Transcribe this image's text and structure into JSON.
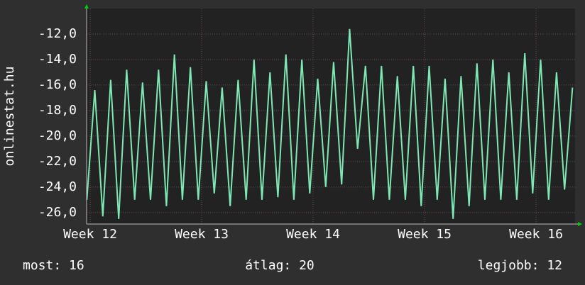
{
  "chart_data": {
    "type": "line",
    "y_label": "onlinestat.hu",
    "x": [
      11.97,
      12.041,
      12.113,
      12.184,
      12.256,
      12.327,
      12.399,
      12.47,
      12.541,
      12.613,
      12.684,
      12.756,
      12.827,
      12.899,
      12.97,
      13.041,
      13.113,
      13.184,
      13.256,
      13.327,
      13.399,
      13.47,
      13.541,
      13.613,
      13.684,
      13.756,
      13.827,
      13.899,
      13.97,
      14.041,
      14.113,
      14.184,
      14.256,
      14.327,
      14.399,
      14.47,
      14.541,
      14.613,
      14.684,
      14.756,
      14.827,
      14.899,
      14.97,
      15.041,
      15.113,
      15.184,
      15.256,
      15.327,
      15.399,
      15.47,
      15.541,
      15.613,
      15.684,
      15.756,
      15.827,
      15.899,
      15.97,
      16.041,
      16.113,
      16.184,
      16.256,
      16.327
    ],
    "series": [
      {
        "color": "#7ee8b4",
        "values": [
          -25,
          -16.4,
          -26.3,
          -15.6,
          -26.5,
          -14.8,
          -25,
          -15.8,
          -25,
          -14.8,
          -25.5,
          -13.6,
          -25,
          -14.6,
          -25,
          -15.7,
          -24.5,
          -16.2,
          -25.5,
          -15.6,
          -25,
          -14,
          -25,
          -15,
          -24.8,
          -13.6,
          -25,
          -14,
          -24.5,
          -15.5,
          -24,
          -14.2,
          -23.8,
          -11.6,
          -21,
          -14.5,
          -25,
          -14.5,
          -25,
          -15.3,
          -25,
          -14.5,
          -25.5,
          -14.5,
          -25,
          -15.5,
          -26.5,
          -15.3,
          -25.5,
          -14.3,
          -25,
          -14,
          -25,
          -15,
          -25,
          -13.5,
          -24.5,
          -14,
          -25,
          -15,
          -24.2,
          -16.2
        ]
      }
    ],
    "xlim": [
      11.968,
      16.35
    ],
    "xticks": [
      {
        "value": 12,
        "label": "Week 12"
      },
      {
        "value": 13,
        "label": "Week 13"
      },
      {
        "value": 14,
        "label": "Week 14"
      },
      {
        "value": 15,
        "label": "Week 15"
      },
      {
        "value": 16,
        "label": "Week 16"
      }
    ],
    "ylim": [
      -26.9,
      -10
    ],
    "yticks": [
      {
        "value": -26,
        "label": "-26,0"
      },
      {
        "value": -24,
        "label": "-24,0"
      },
      {
        "value": -22,
        "label": "-22,0"
      },
      {
        "value": -20,
        "label": "-20,0"
      },
      {
        "value": -18,
        "label": "-18,0"
      },
      {
        "value": -16,
        "label": "-16,0"
      },
      {
        "value": -14,
        "label": "-14,0"
      },
      {
        "value": -12,
        "label": "-12,0"
      }
    ],
    "grid": true,
    "stats": [
      "most: 16",
      "átlag: 20",
      "legjobb: 12"
    ]
  }
}
